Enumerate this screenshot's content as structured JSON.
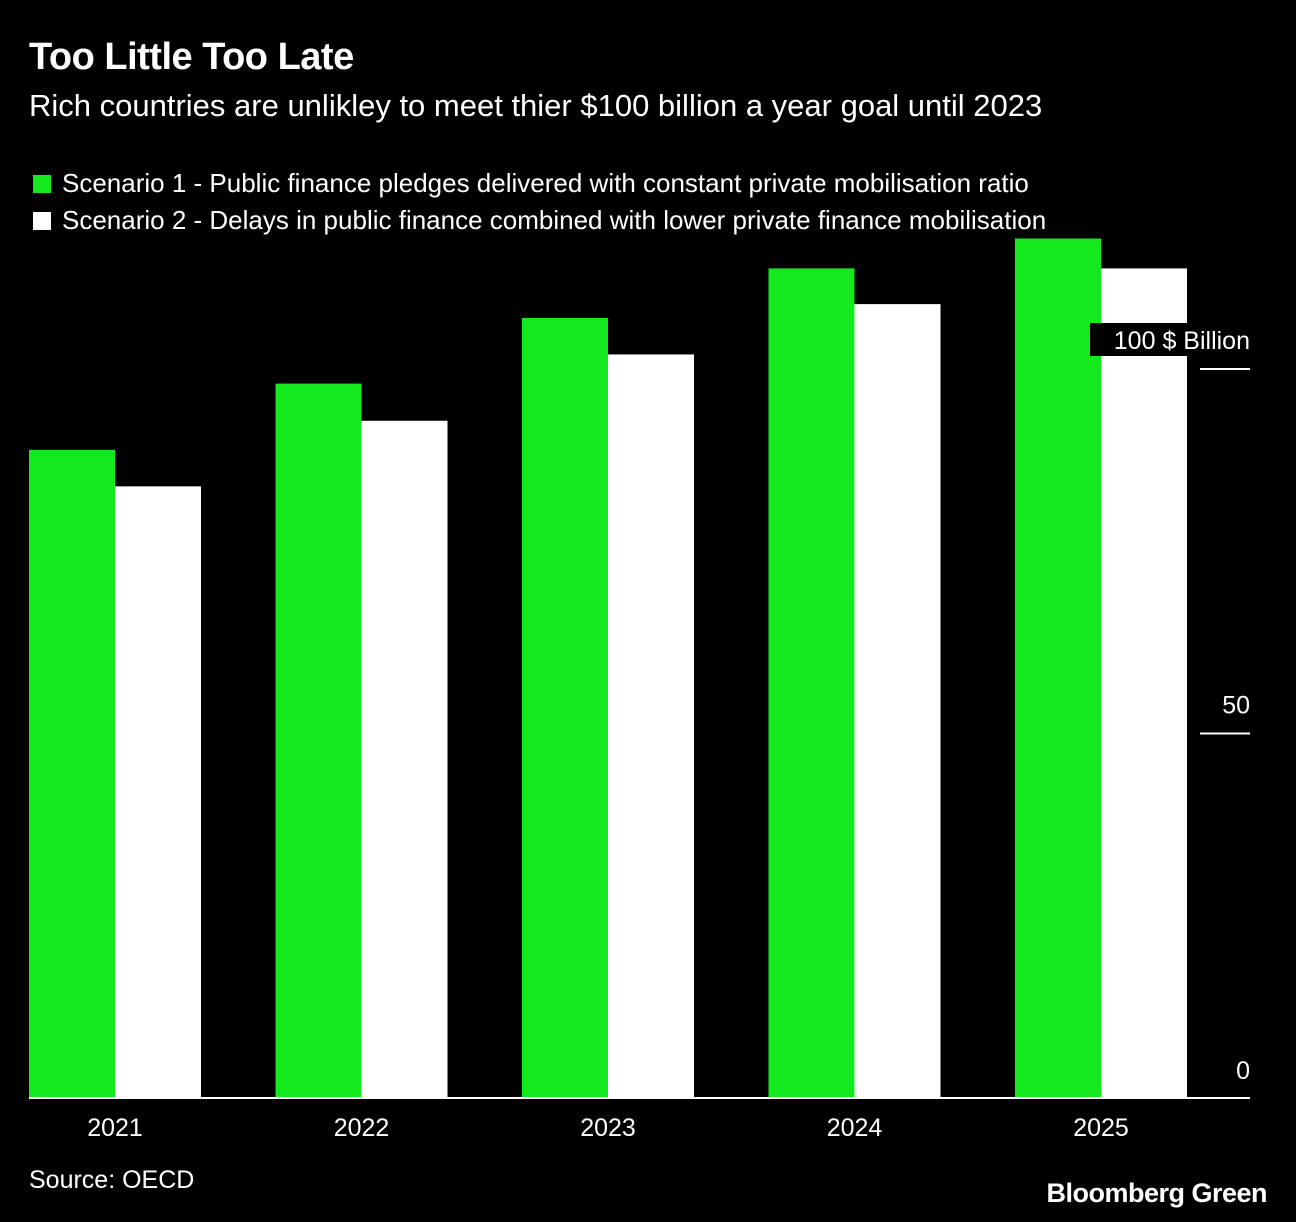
{
  "title": "Too Little Too Late",
  "subtitle": "Rich countries are unlikley to meet thier $100 billion a year goal until 2023",
  "source": "Source: OECD",
  "brand": "Bloomberg Green",
  "colors": {
    "background": "#000000",
    "scenario1": "#14e81e",
    "scenario2": "#ffffff",
    "text": "#ffffff"
  },
  "chart_data": {
    "type": "bar",
    "categories": [
      "2021",
      "2022",
      "2023",
      "2024",
      "2025"
    ],
    "series": [
      {
        "name": "Scenario 1 - Public finance pledges delivered with constant private mobilisation ratio",
        "values": [
          88.9,
          98,
          107,
          113.8,
          117.9
        ]
      },
      {
        "name": "Scenario 2 - Delays in public finance combined with lower private finance mobilisation",
        "values": [
          83.9,
          92.9,
          102,
          108.9,
          113.8
        ]
      }
    ],
    "y_ticks": [
      {
        "value": 100,
        "label": "100 $ Billion"
      },
      {
        "value": 50,
        "label": "50"
      },
      {
        "value": 0,
        "label": "0"
      }
    ],
    "ylim": [
      0,
      120
    ],
    "legend_position": "top-left",
    "xlabel": "",
    "ylabel": "$ Billion"
  }
}
